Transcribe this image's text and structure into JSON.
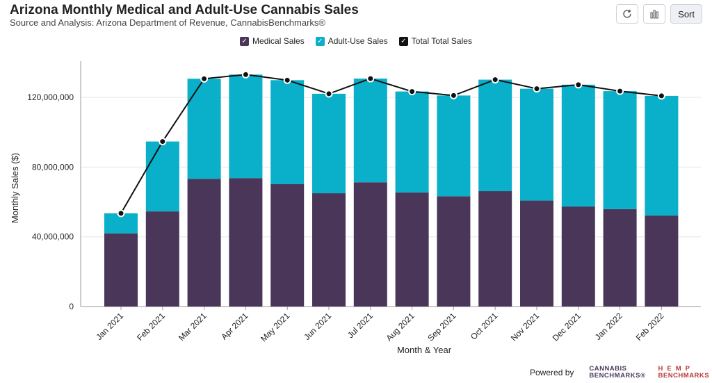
{
  "header": {
    "title": "Arizona Monthly Medical and Adult-Use Cannabis Sales",
    "subtitle": "Source and Analysis: Arizona Department of Revenue, CannabisBenchmarks®"
  },
  "toolbar": {
    "refresh_icon": "refresh-icon",
    "chart_icon": "bar-chart-icon",
    "sort_label": "Sort"
  },
  "legend": {
    "items": [
      {
        "label": "Medical Sales",
        "color": "#4a3659",
        "check": "✓"
      },
      {
        "label": "Adult-Use Sales",
        "color": "#0aafc9",
        "check": "✓"
      },
      {
        "label": "Total Total Sales",
        "color": "#111111",
        "check": "✓"
      }
    ]
  },
  "footer": {
    "powered_by": "Powered by",
    "logo1_line1": "CANNABIS",
    "logo1_line2": "BENCHMARKS",
    "logo1_mark": "®",
    "logo2_line1": "HEMP",
    "logo2_line2": "BENCHMARKS"
  },
  "chart_data": {
    "type": "bar",
    "stacked": true,
    "title": "Arizona Monthly Medical and Adult-Use Cannabis Sales",
    "xlabel": "Month & Year",
    "ylabel": "Monthly Sales ($)",
    "ylim": [
      0,
      140000000
    ],
    "yticks": [
      0,
      40000000,
      80000000,
      120000000
    ],
    "ytick_labels": [
      "0",
      "40,000,000",
      "80,000,000",
      "120,000,000"
    ],
    "categories": [
      "Jan 2021",
      "Feb 2021",
      "Mar 2021",
      "Apr 2021",
      "May 2021",
      "Jun 2021",
      "Jul 2021",
      "Aug 2021",
      "Sep 2021",
      "Oct 2021",
      "Nov 2021",
      "Dec 2021",
      "Jan 2022",
      "Feb 2022"
    ],
    "series": [
      {
        "name": "Medical Sales",
        "color": "#4a3659",
        "values": [
          42000000,
          54600000,
          73300000,
          73700000,
          70200000,
          65000000,
          71300000,
          65500000,
          63300000,
          66200000,
          60800000,
          57400000,
          55900000,
          52200000
        ]
      },
      {
        "name": "Adult-Use Sales",
        "color": "#0aafc9",
        "values": [
          11500000,
          40100000,
          57400000,
          59400000,
          59700000,
          57100000,
          59500000,
          57900000,
          57800000,
          64000000,
          64200000,
          69900000,
          67700000,
          68700000
        ]
      }
    ],
    "line": {
      "name": "Total Total Sales",
      "color": "#111111",
      "values": [
        53500000,
        94700000,
        130700000,
        133100000,
        129900000,
        122100000,
        130800000,
        123400000,
        121100000,
        130200000,
        125000000,
        127300000,
        123600000,
        120900000
      ]
    },
    "grid": true,
    "legend": "top-center"
  }
}
